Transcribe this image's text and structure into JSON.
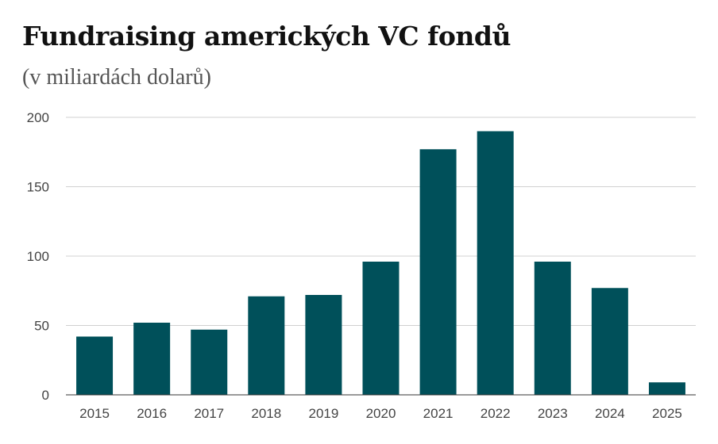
{
  "chart_data": {
    "type": "bar",
    "title": "Fundraising amerických VC fondů",
    "subtitle": "(v miliardách dolarů)",
    "xlabel": "",
    "ylabel": "",
    "categories": [
      "2015",
      "2016",
      "2017",
      "2018",
      "2019",
      "2020",
      "2021",
      "2022",
      "2023",
      "2024",
      "2025"
    ],
    "values": [
      42,
      52,
      47,
      71,
      72,
      96,
      177,
      190,
      96,
      77,
      9
    ],
    "ylim": [
      0,
      200
    ],
    "yticks": [
      "0",
      "50",
      "100",
      "150",
      "200"
    ],
    "grid": true,
    "legend": "none",
    "bar_color": "#00505a"
  }
}
